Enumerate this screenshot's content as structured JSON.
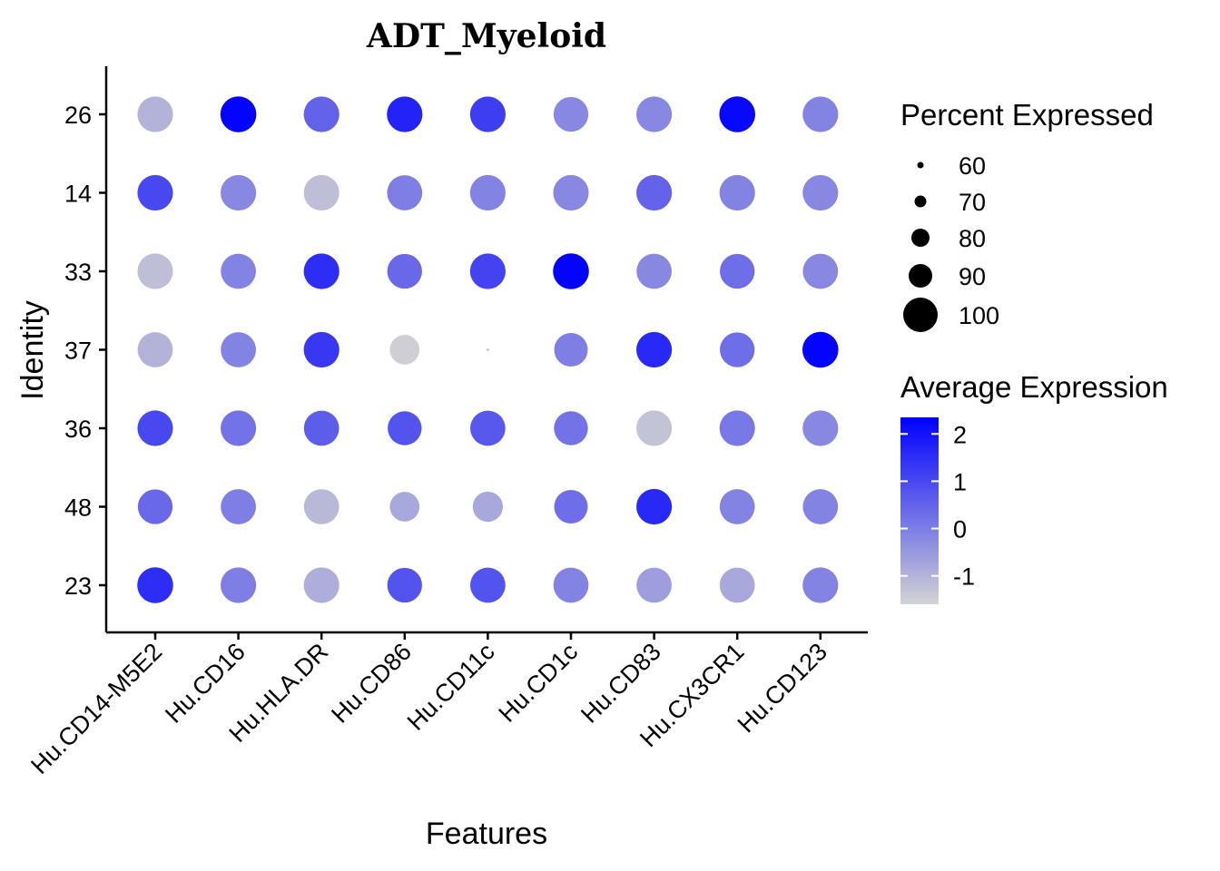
{
  "chart_data": {
    "type": "dotplot",
    "title": "ADT_Myeloid",
    "xlabel": "Features",
    "ylabel": "Identity",
    "features": [
      "Hu.CD14-M5E2",
      "Hu.CD16",
      "Hu.HLA.DR",
      "Hu.CD86",
      "Hu.CD11c",
      "Hu.CD1c",
      "Hu.CD83",
      "Hu.CX3CR1",
      "Hu.CD123"
    ],
    "identities": [
      "26",
      "14",
      "33",
      "37",
      "36",
      "48",
      "23"
    ],
    "average_expression": [
      [
        -1.0,
        2.3,
        0.5,
        1.7,
        1.2,
        -0.2,
        -0.2,
        2.2,
        -0.1
      ],
      [
        1.0,
        -0.2,
        -1.2,
        0.0,
        -0.1,
        -0.2,
        0.5,
        -0.1,
        -0.2
      ],
      [
        -1.2,
        -0.1,
        1.5,
        0.4,
        1.1,
        2.3,
        -0.2,
        0.3,
        -0.2
      ],
      [
        -1.0,
        -0.1,
        1.3,
        -1.5,
        -1.4,
        0.0,
        1.6,
        0.3,
        2.3
      ],
      [
        1.0,
        0.2,
        0.6,
        0.8,
        0.7,
        0.2,
        -1.3,
        0.1,
        -0.2
      ],
      [
        0.4,
        0.0,
        -1.1,
        -0.8,
        -0.8,
        0.3,
        1.6,
        -0.1,
        -0.1
      ],
      [
        1.5,
        0.0,
        -0.9,
        0.8,
        0.8,
        -0.1,
        -0.6,
        -0.8,
        -0.1
      ]
    ],
    "percent_expressed": [
      [
        98,
        99,
        98,
        98,
        98,
        96,
        98,
        99,
        98
      ],
      [
        98,
        98,
        98,
        97,
        98,
        98,
        98,
        98,
        98
      ],
      [
        98,
        97,
        98,
        96,
        98,
        99,
        97,
        96,
        97
      ],
      [
        97,
        97,
        98,
        84,
        55,
        93,
        98,
        96,
        99
      ],
      [
        98,
        98,
        97,
        94,
        97,
        94,
        98,
        98,
        98
      ],
      [
        96,
        97,
        97,
        84,
        85,
        93,
        98,
        97,
        97
      ],
      [
        99,
        98,
        98,
        96,
        97,
        97,
        97,
        97,
        98
      ]
    ],
    "size_legend": {
      "title": "Percent Expressed",
      "breaks": [
        60,
        70,
        80,
        90,
        100
      ],
      "labels": [
        "60",
        "70",
        "80",
        "90",
        "100"
      ]
    },
    "color_legend": {
      "title": "Average Expression",
      "breaks": [
        2,
        1,
        0,
        -1
      ],
      "labels": [
        "2",
        "1",
        "0",
        "-1"
      ],
      "range": [
        -1.6,
        2.35
      ],
      "low_color": "#d3d3d3",
      "high_color": "#0000ff"
    },
    "grid": false,
    "legend_position": "right"
  }
}
